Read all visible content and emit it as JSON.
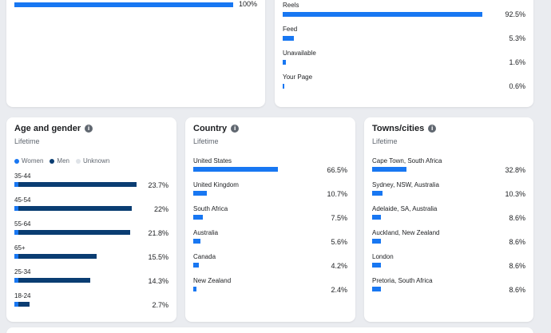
{
  "colors": {
    "women": "#1877f2",
    "men": "#0a3d72",
    "unknown": "#dfe3e8",
    "bar": "#1877f2"
  },
  "top_left": {
    "rows": [
      {
        "label": "",
        "value": "100%",
        "fraction": 1.0
      }
    ]
  },
  "top_right": {
    "rows": [
      {
        "label": "Reels",
        "value": "92.5%",
        "fraction": 0.925
      },
      {
        "label": "Feed",
        "value": "5.3%",
        "fraction": 0.053
      },
      {
        "label": "Unavailable",
        "value": "1.6%",
        "fraction": 0.016
      },
      {
        "label": "Your Page",
        "value": "0.6%",
        "fraction": 0.006
      }
    ]
  },
  "age_gender": {
    "title": "Age and gender",
    "subtitle": "Lifetime",
    "legend": {
      "women": "Women",
      "men": "Men",
      "unknown": "Unknown"
    },
    "rows": [
      {
        "label": "35-44",
        "value": "23.7%",
        "women": 0.03,
        "men": 0.97
      },
      {
        "label": "45-54",
        "value": "22%",
        "women": 0.03,
        "men": 0.93
      },
      {
        "label": "55-64",
        "value": "21.8%",
        "women": 0.03,
        "men": 0.92
      },
      {
        "label": "65+",
        "value": "15.5%",
        "women": 0.03,
        "men": 0.65
      },
      {
        "label": "25-34",
        "value": "14.3%",
        "women": 0.03,
        "men": 0.6
      },
      {
        "label": "18-24",
        "value": "2.7%",
        "women": 0.03,
        "men": 0.12
      }
    ]
  },
  "country": {
    "title": "Country",
    "subtitle": "Lifetime",
    "rows": [
      {
        "label": "United States",
        "value": "66.5%",
        "fraction": 0.665
      },
      {
        "label": "United Kingdom",
        "value": "10.7%",
        "fraction": 0.107
      },
      {
        "label": "South Africa",
        "value": "7.5%",
        "fraction": 0.075
      },
      {
        "label": "Australia",
        "value": "5.6%",
        "fraction": 0.056
      },
      {
        "label": "Canada",
        "value": "4.2%",
        "fraction": 0.042
      },
      {
        "label": "New Zealand",
        "value": "2.4%",
        "fraction": 0.024
      }
    ]
  },
  "towns": {
    "title": "Towns/cities",
    "subtitle": "Lifetime",
    "rows": [
      {
        "label": "Cape Town, South Africa",
        "value": "32.8%",
        "fraction": 0.328
      },
      {
        "label": "Sydney, NSW, Australia",
        "value": "10.3%",
        "fraction": 0.103
      },
      {
        "label": "Adelaide, SA, Australia",
        "value": "8.6%",
        "fraction": 0.086
      },
      {
        "label": "Auckland, New Zealand",
        "value": "8.6%",
        "fraction": 0.086
      },
      {
        "label": "London",
        "value": "8.6%",
        "fraction": 0.086
      },
      {
        "label": "Pretoria, South Africa",
        "value": "8.6%",
        "fraction": 0.086
      }
    ]
  }
}
